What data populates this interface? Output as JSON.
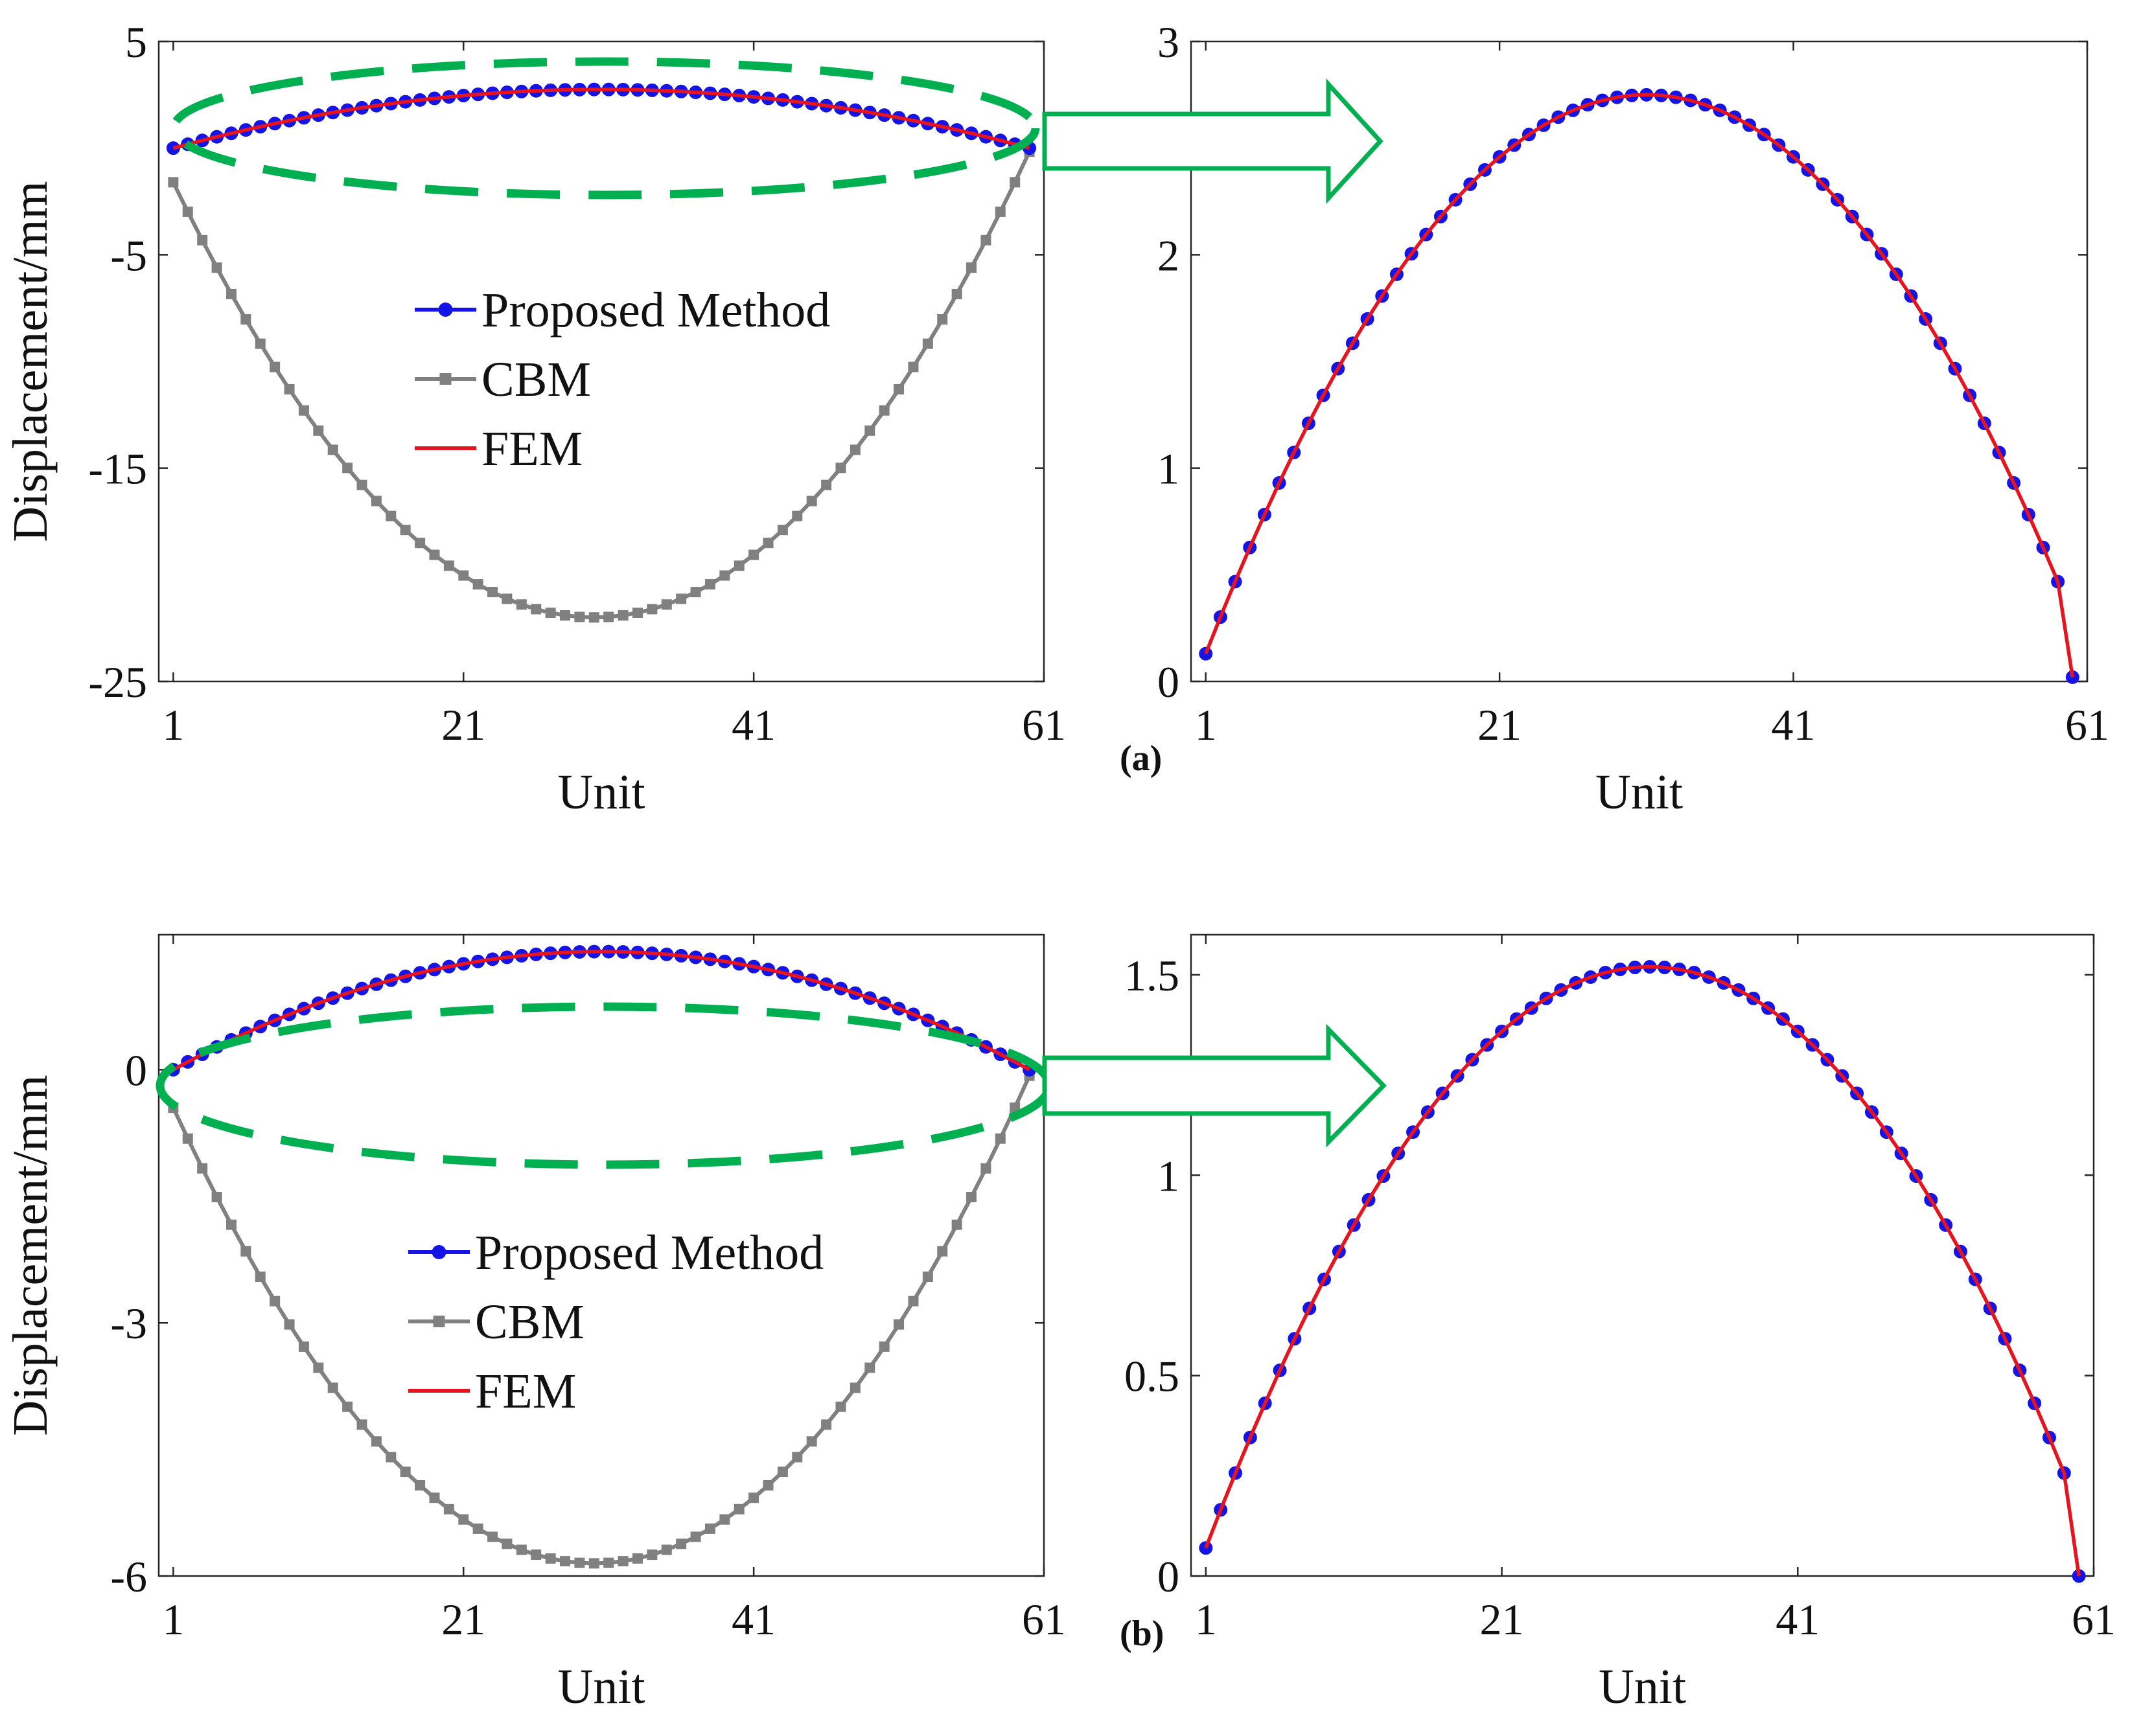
{
  "figure": {
    "colors": {
      "proposed": "#1414e6",
      "cbm": "#808080",
      "fem": "#e6141e",
      "highlight": "#00b050"
    }
  },
  "chart_data": [
    {
      "id": "a-left",
      "type": "line",
      "title": "",
      "xlabel": "Unit",
      "ylabel": "Displacement/mm",
      "xlim": [
        0,
        61
      ],
      "ylim": [
        -25,
        5
      ],
      "xticks": [
        1,
        21,
        41,
        61
      ],
      "yticks": [
        5,
        -5,
        -15,
        -25
      ],
      "legend": {
        "position": "center-left",
        "entries": [
          "Proposed Method",
          "CBM",
          "FEM"
        ]
      },
      "series": [
        {
          "name": "Proposed Method",
          "kind": "quad",
          "x0": 1,
          "x1": 60,
          "y_ends": 0,
          "y_peak": 2.75,
          "x_peak": 30.5,
          "marker": "circle"
        },
        {
          "name": "CBM",
          "kind": "quad",
          "x0": 1,
          "x1": 60,
          "y_ends": -1.6,
          "y_peak": -22.0,
          "x_peak": 30,
          "marker": "square"
        },
        {
          "name": "FEM",
          "kind": "quad",
          "x0": 1,
          "x1": 60,
          "y_ends": 0,
          "y_peak": 2.75,
          "x_peak": 30.5,
          "marker": "none"
        }
      ]
    },
    {
      "id": "a-right",
      "type": "line",
      "title": "",
      "xlabel": "Unit",
      "ylabel": "",
      "xlim": [
        0,
        61
      ],
      "ylim": [
        0,
        3
      ],
      "xticks": [
        1,
        21,
        41,
        61
      ],
      "yticks": [
        0,
        1,
        2,
        3
      ],
      "series": [
        {
          "name": "Proposed Method",
          "kind": "quad",
          "x0": 1,
          "x1": 60,
          "y_ends": 0.13,
          "y_peak": 2.75,
          "x_peak": 31,
          "y_last": 0.02,
          "marker": "circle"
        },
        {
          "name": "FEM",
          "kind": "quad",
          "x0": 1,
          "x1": 60,
          "y_ends": 0.13,
          "y_peak": 2.75,
          "x_peak": 31,
          "y_last": 0.02,
          "marker": "none"
        }
      ]
    },
    {
      "id": "b-left",
      "type": "line",
      "title": "",
      "xlabel": "Unit",
      "ylabel": "Displacement/mm",
      "xlim": [
        0,
        61
      ],
      "ylim": [
        -6,
        1.6
      ],
      "xticks": [
        1,
        21,
        41,
        61
      ],
      "yticks": [
        0,
        -3,
        -6
      ],
      "legend": {
        "position": "center-left",
        "entries": [
          "Proposed Method",
          "CBM",
          "FEM"
        ]
      },
      "series": [
        {
          "name": "Proposed Method",
          "kind": "quad",
          "x0": 1,
          "x1": 60,
          "y_ends": 0,
          "y_peak": 1.4,
          "x_peak": 30.5,
          "marker": "circle"
        },
        {
          "name": "CBM",
          "kind": "quad",
          "x0": 1,
          "x1": 60,
          "y_ends": -0.45,
          "y_peak": -5.85,
          "x_peak": 30,
          "marker": "square"
        },
        {
          "name": "FEM",
          "kind": "quad",
          "x0": 1,
          "x1": 60,
          "y_ends": 0,
          "y_peak": 1.4,
          "x_peak": 30.5,
          "marker": "none"
        }
      ]
    },
    {
      "id": "b-right",
      "type": "line",
      "title": "",
      "xlabel": "Unit",
      "ylabel": "",
      "xlim": [
        0,
        61
      ],
      "ylim": [
        0,
        1.6
      ],
      "xticks": [
        1,
        21,
        41,
        61
      ],
      "yticks": [
        0,
        0.5,
        1,
        1.5
      ],
      "series": [
        {
          "name": "Proposed Method",
          "kind": "quad",
          "x0": 1,
          "x1": 60,
          "y_ends": 0.07,
          "y_peak": 1.52,
          "x_peak": 31,
          "y_last": 0.0,
          "marker": "circle"
        },
        {
          "name": "FEM",
          "kind": "quad",
          "x0": 1,
          "x1": 60,
          "y_ends": 0.07,
          "y_peak": 1.52,
          "x_peak": 31,
          "y_last": 0.0,
          "marker": "none"
        }
      ]
    }
  ],
  "panel_labels": {
    "a": "(a)",
    "b": "(b)"
  }
}
